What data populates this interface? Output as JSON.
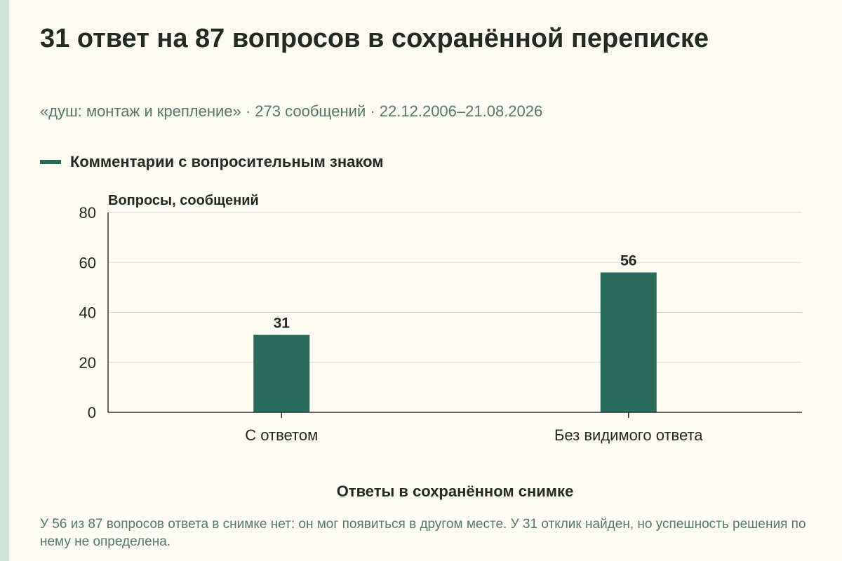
{
  "page": {
    "title": "31 ответ на 87 вопросов в сохранённой переписке",
    "subtitle": "«душ: монтаж и крепление» · 273 сообщений · 22.12.2006–21.08.2026",
    "footnote": "У 56 из 87 вопросов ответа в снимке нет: он мог появиться в другом месте. У 31 отклик найден, но успешность решения по нему не определена."
  },
  "colors": {
    "bar": "#2a6a5a",
    "accent_stripe": "#cfe3da",
    "text_muted": "#55796c",
    "background": "#fdfbf2"
  },
  "chart_data": {
    "type": "bar",
    "categories": [
      "С ответом",
      "Без видимого ответа"
    ],
    "series": [
      {
        "name": "Комментарии с вопросительным знаком",
        "values": [
          31,
          56
        ]
      }
    ],
    "data_labels": [
      "31",
      "56"
    ],
    "xlabel": "Ответы в сохранённом снимке",
    "ylabel": "Вопросы, сообщений",
    "ylim": [
      0,
      80
    ],
    "yticks": [
      0,
      20,
      40,
      60,
      80
    ],
    "ytick_labels": [
      "0",
      "20",
      "40",
      "60",
      "80"
    ],
    "grid": true,
    "legend_position": "top-left"
  }
}
